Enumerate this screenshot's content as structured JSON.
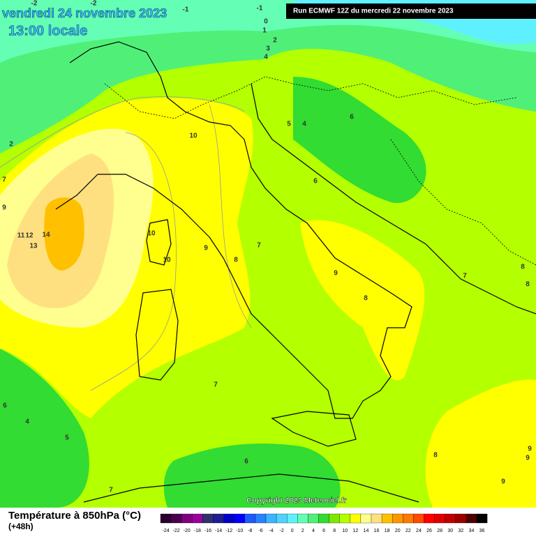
{
  "header": {
    "date": "vendredi 24 novembre 2023",
    "time": "13:00 locale",
    "run": "Run ECMWF 12Z du mercredi 22 novembre 2023"
  },
  "copyright": "Copyright 2023 Meteociel.fr",
  "footer": {
    "title": "Température à 850hPa (°C)",
    "lead": "(+48h)"
  },
  "legend": {
    "labels": [
      -24,
      -22,
      -20,
      -18,
      -16,
      -14,
      -12,
      -10,
      -8,
      -6,
      -4,
      -2,
      0,
      2,
      4,
      6,
      8,
      10,
      12,
      14,
      16,
      18,
      20,
      22,
      24,
      26,
      28,
      30,
      32,
      34,
      36
    ],
    "colors": [
      "#2b0030",
      "#4b004f",
      "#80007f",
      "#9c009c",
      "#303070",
      "#1e1e96",
      "#0000c8",
      "#0000ff",
      "#1e5aff",
      "#2882ff",
      "#3cb4ff",
      "#50d2ff",
      "#5ff0ff",
      "#64ffb4",
      "#50f078",
      "#32dc32",
      "#7ce800",
      "#b4ff00",
      "#ffff00",
      "#ffff90",
      "#ffe080",
      "#ffc000",
      "#ff9600",
      "#ff7800",
      "#ff4b00",
      "#ff0000",
      "#e10000",
      "#c00000",
      "#9b0000",
      "#500000",
      "#000000"
    ]
  },
  "map_labels": [
    -2,
    -2,
    -1,
    -1,
    0,
    1,
    2,
    3,
    4,
    10,
    5,
    4,
    6,
    2,
    6,
    11,
    12,
    14,
    13,
    10,
    10,
    9,
    8,
    7,
    9,
    8,
    7,
    8,
    8,
    7,
    6,
    4,
    5,
    6,
    7,
    8,
    9,
    9,
    9,
    9,
    7
  ]
}
